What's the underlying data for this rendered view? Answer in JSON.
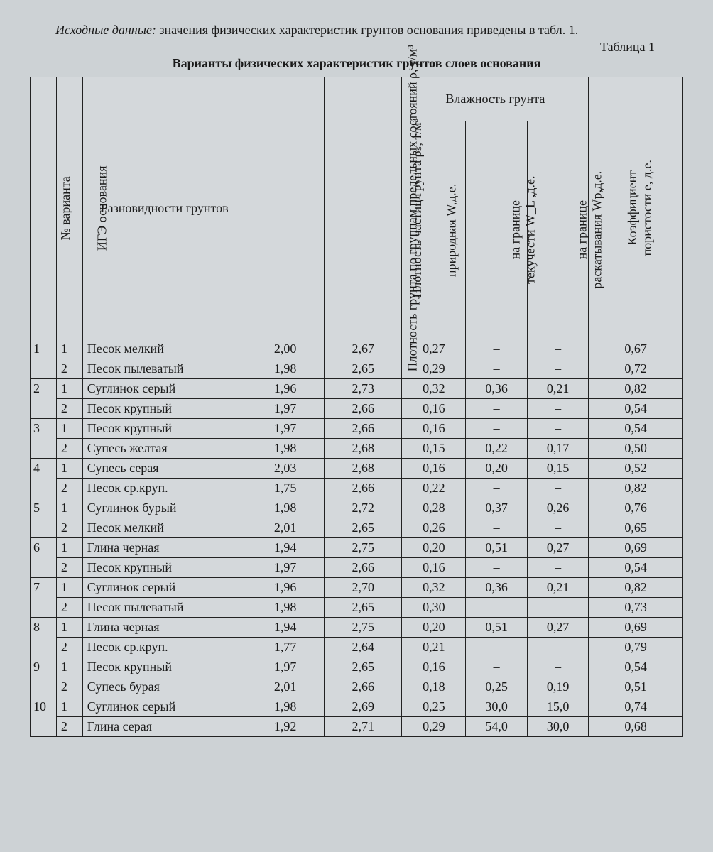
{
  "intro_lead": "Исходные данные:",
  "intro_rest": " значения физических характеристик грунтов основания приведены в табл. 1.",
  "table_number": "Таблица 1",
  "table_title": "Варианты физических характеристик грунтов слоев основания",
  "headers": {
    "variant": "№ варианта",
    "ige": "ИГЭ основания",
    "soil": "Разновидности грунтов",
    "rho": "Плотность грунта по группам предельных состояний ρ, т/м³",
    "rhos": "Плотность частиц грунта ρₛ, т/м³",
    "moist_group": "Влажность грунта",
    "w": "природная W,д.е.",
    "wl_1": "на границе",
    "wl_2": "текучести W_L ,д.е.",
    "wp_1": "на границе",
    "wp_2": "раскатывания Wp,д.е.",
    "e_1": "Коэффициент",
    "e_2": "пористости e, д.е."
  },
  "rows": [
    {
      "v": "1",
      "ige": "1",
      "name": "Песок мелкий",
      "rho": "2,00",
      "rhos": "2,67",
      "w": "0,27",
      "wl": "–",
      "wp": "–",
      "e": "0,67"
    },
    {
      "v": "",
      "ige": "2",
      "name": "Песок пылеватый",
      "rho": "1,98",
      "rhos": "2,65",
      "w": "0,29",
      "wl": "–",
      "wp": "–",
      "e": "0,72"
    },
    {
      "v": "2",
      "ige": "1",
      "name": "Суглинок серый",
      "rho": "1,96",
      "rhos": "2,73",
      "w": "0,32",
      "wl": "0,36",
      "wp": "0,21",
      "e": "0,82"
    },
    {
      "v": "",
      "ige": "2",
      "name": "Песок крупный",
      "rho": "1,97",
      "rhos": "2,66",
      "w": "0,16",
      "wl": "–",
      "wp": "–",
      "e": "0,54"
    },
    {
      "v": "3",
      "ige": "1",
      "name": "Песок крупный",
      "rho": "1,97",
      "rhos": "2,66",
      "w": "0,16",
      "wl": "–",
      "wp": "–",
      "e": "0,54"
    },
    {
      "v": "",
      "ige": "2",
      "name": "Супесь желтая",
      "rho": "1,98",
      "rhos": "2,68",
      "w": "0,15",
      "wl": "0,22",
      "wp": "0,17",
      "e": "0,50"
    },
    {
      "v": "4",
      "ige": "1",
      "name": "Супесь серая",
      "rho": "2,03",
      "rhos": "2,68",
      "w": "0,16",
      "wl": "0,20",
      "wp": "0,15",
      "e": "0,52"
    },
    {
      "v": "",
      "ige": "2",
      "name": "Песок ср.круп.",
      "rho": "1,75",
      "rhos": "2,66",
      "w": "0,22",
      "wl": "–",
      "wp": "–",
      "e": "0,82"
    },
    {
      "v": "5",
      "ige": "1",
      "name": "Суглинок бурый",
      "rho": "1,98",
      "rhos": "2,72",
      "w": "0,28",
      "wl": "0,37",
      "wp": "0,26",
      "e": "0,76"
    },
    {
      "v": "",
      "ige": "2",
      "name": "Песок мелкий",
      "rho": "2,01",
      "rhos": "2,65",
      "w": "0,26",
      "wl": "–",
      "wp": "–",
      "e": "0,65"
    },
    {
      "v": "6",
      "ige": "1",
      "name": "Глина черная",
      "rho": "1,94",
      "rhos": "2,75",
      "w": "0,20",
      "wl": "0,51",
      "wp": "0,27",
      "e": "0,69"
    },
    {
      "v": "",
      "ige": "2",
      "name": "Песок крупный",
      "rho": "1,97",
      "rhos": "2,66",
      "w": "0,16",
      "wl": "–",
      "wp": "–",
      "e": "0,54"
    },
    {
      "v": "7",
      "ige": "1",
      "name": "Суглинок серый",
      "rho": "1,96",
      "rhos": "2,70",
      "w": "0,32",
      "wl": "0,36",
      "wp": "0,21",
      "e": "0,82"
    },
    {
      "v": "",
      "ige": "2",
      "name": "Песок пылеватый",
      "rho": "1,98",
      "rhos": "2,65",
      "w": "0,30",
      "wl": "–",
      "wp": "–",
      "e": "0,73"
    },
    {
      "v": "8",
      "ige": "1",
      "name": "Глина черная",
      "rho": "1,94",
      "rhos": "2,75",
      "w": "0,20",
      "wl": "0,51",
      "wp": "0,27",
      "e": "0,69"
    },
    {
      "v": "",
      "ige": "2",
      "name": "Песок ср.круп.",
      "rho": "1,77",
      "rhos": "2,64",
      "w": "0,21",
      "wl": "–",
      "wp": "–",
      "e": "0,79"
    },
    {
      "v": "9",
      "ige": "1",
      "name": "Песок крупный",
      "rho": "1,97",
      "rhos": "2,65",
      "w": "0,16",
      "wl": "–",
      "wp": "–",
      "e": "0,54"
    },
    {
      "v": "",
      "ige": "2",
      "name": "Супесь бурая",
      "rho": "2,01",
      "rhos": "2,66",
      "w": "0,18",
      "wl": "0,25",
      "wp": "0,19",
      "e": "0,51"
    },
    {
      "v": "10",
      "ige": "1",
      "name": "Суглинок серый",
      "rho": "1,98",
      "rhos": "2,69",
      "w": "0,25",
      "wl": "30,0",
      "wp": "15,0",
      "e": "0,74"
    },
    {
      "v": "",
      "ige": "2",
      "name": "Глина серая",
      "rho": "1,92",
      "rhos": "2,71",
      "w": "0,29",
      "wl": "54,0",
      "wp": "30,0",
      "e": "0,68"
    }
  ]
}
